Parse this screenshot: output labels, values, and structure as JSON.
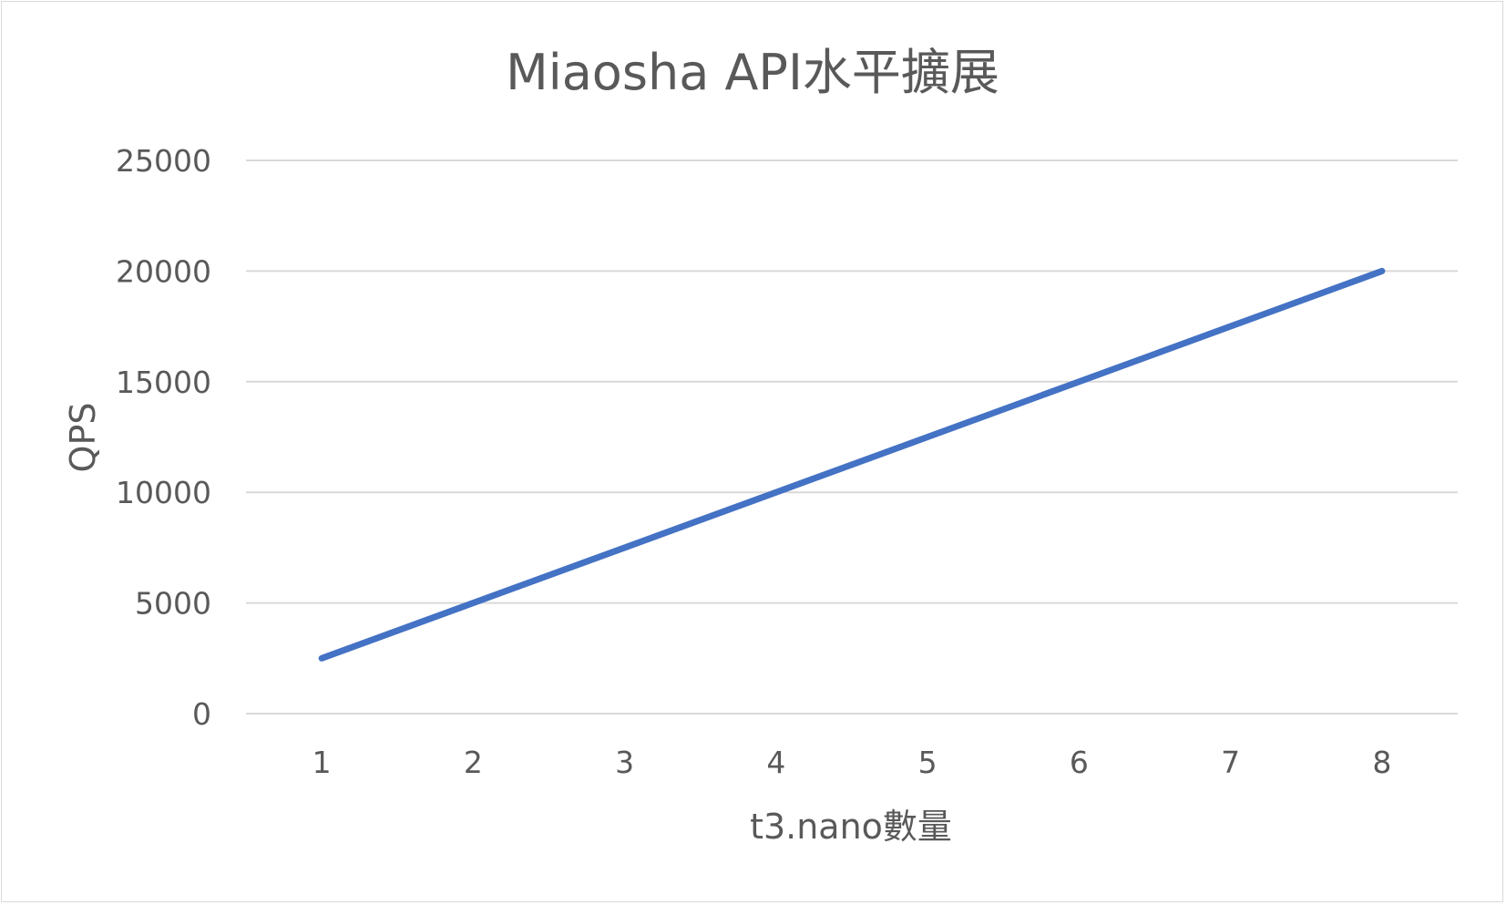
{
  "chart_data": {
    "type": "line",
    "title": "Miaosha API水平擴展",
    "xlabel": "t3.nano數量",
    "ylabel": "QPS",
    "categories": [
      "1",
      "2",
      "3",
      "4",
      "5",
      "6",
      "7",
      "8"
    ],
    "series": [
      {
        "values": [
          2500,
          5000,
          7500,
          10000,
          12500,
          15000,
          17500,
          20000
        ],
        "color": "#4472C4"
      }
    ],
    "yticks": [
      "0",
      "5000",
      "10000",
      "15000",
      "20000",
      "25000"
    ],
    "ylim": [
      0,
      25000
    ],
    "grid": true,
    "legend": "none"
  }
}
